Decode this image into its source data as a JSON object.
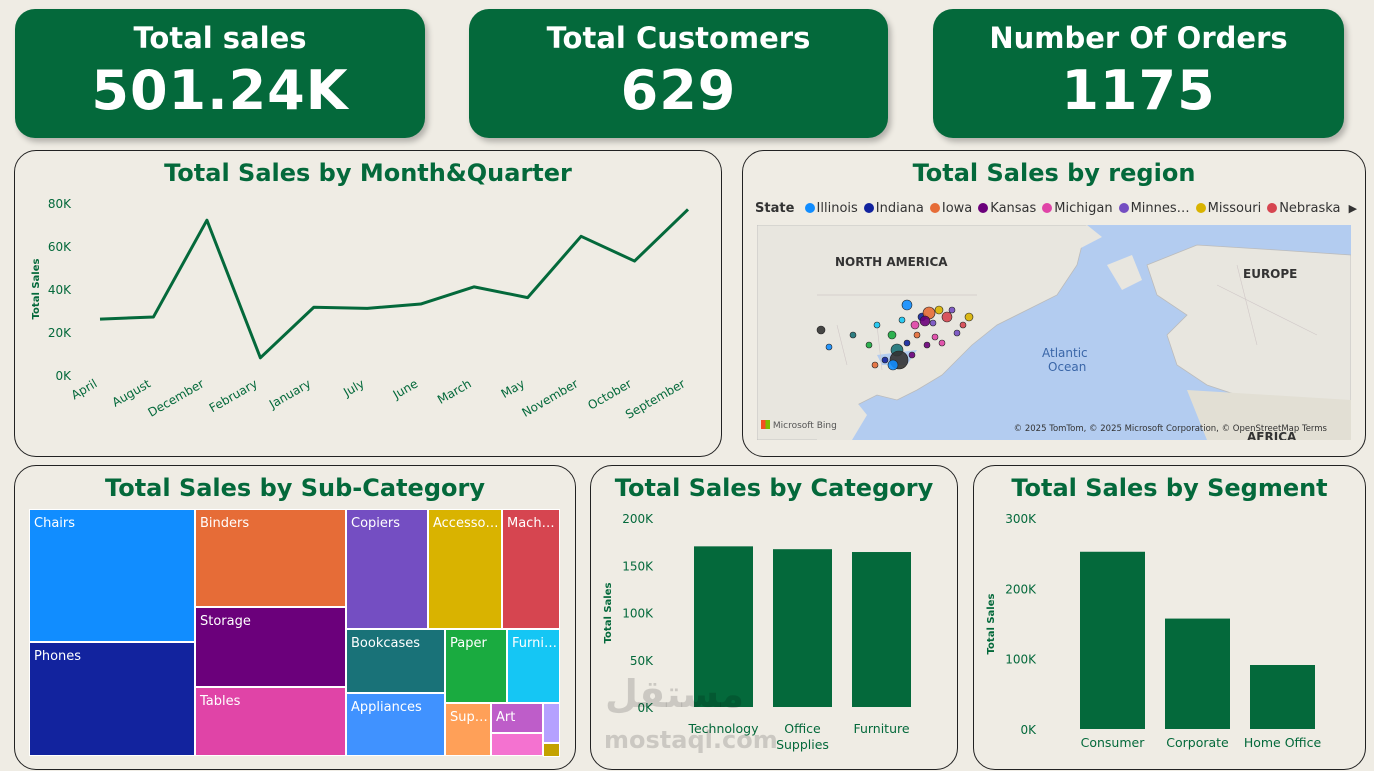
{
  "kpis": [
    {
      "title": "Total sales",
      "value": "501.24K"
    },
    {
      "title": "Total Customers",
      "value": "629"
    },
    {
      "title": "Number Of Orders",
      "value": "1175"
    }
  ],
  "titles": {
    "month": "Total Sales by Month&Quarter",
    "region": "Total Sales by region",
    "subcat": "Total Sales by Sub-Category",
    "category": "Total Sales by Category",
    "segment": "Total Sales by Segment"
  },
  "map": {
    "legend_title": "State",
    "legend_items": [
      {
        "name": "Illinois",
        "color": "#118dff"
      },
      {
        "name": "Indiana",
        "color": "#12239e"
      },
      {
        "name": "Iowa",
        "color": "#e66c37"
      },
      {
        "name": "Kansas",
        "color": "#6b007b"
      },
      {
        "name": "Michigan",
        "color": "#e044a7"
      },
      {
        "name": "Minnes…",
        "color": "#744ec2"
      },
      {
        "name": "Missouri",
        "color": "#d9b300"
      },
      {
        "name": "Nebraska",
        "color": "#d64550"
      }
    ],
    "labels": {
      "na": "NORTH AMERICA",
      "eu": "EUROPE",
      "ocean1": "Atlantic",
      "ocean2": "Ocean",
      "af": "AFRICA"
    },
    "attribution": "© 2025 TomTom, © 2025 Microsoft Corporation, © OpenStreetMap  Terms",
    "brand": "Microsoft Bing"
  },
  "watermark": {
    "line1": "مستقل",
    "line2": "mostaql.com"
  },
  "chart_data": [
    {
      "type": "line",
      "title": "Total Sales by Month&Quarter",
      "ylabel": "Total Sales",
      "xlabel": "",
      "categories": [
        "April",
        "August",
        "December",
        "February",
        "January",
        "July",
        "June",
        "March",
        "May",
        "November",
        "October",
        "September"
      ],
      "values": [
        26000,
        27000,
        72000,
        8000,
        31500,
        31000,
        33000,
        41000,
        36000,
        64500,
        53000,
        77000
      ],
      "ylim": [
        0,
        80000
      ],
      "yticks": [
        "0K",
        "20K",
        "40K",
        "60K",
        "80K"
      ],
      "color": "#04693b"
    },
    {
      "type": "treemap",
      "title": "Total Sales by Sub-Category",
      "items": [
        {
          "name": "Chairs",
          "color": "#118dff"
        },
        {
          "name": "Phones",
          "color": "#12239e"
        },
        {
          "name": "Binders",
          "color": "#e66c37"
        },
        {
          "name": "Storage",
          "color": "#6b007b"
        },
        {
          "name": "Tables",
          "color": "#e044a7"
        },
        {
          "name": "Copiers",
          "color": "#744ec2"
        },
        {
          "name": "Accesso…",
          "color": "#d9b300"
        },
        {
          "name": "Mach…",
          "color": "#d64550"
        },
        {
          "name": "Bookcases",
          "color": "#197278"
        },
        {
          "name": "Paper",
          "color": "#1aab40"
        },
        {
          "name": "Furni…",
          "color": "#15c6f4"
        },
        {
          "name": "Appliances",
          "color": "#4092ff"
        },
        {
          "name": "Sup…",
          "color": "#ffa058"
        },
        {
          "name": "Art",
          "color": "#be5dc9"
        },
        {
          "name": "",
          "color": "#f472d0"
        },
        {
          "name": "",
          "color": "#b5a1ff"
        },
        {
          "name": "",
          "color": "#c4a200"
        }
      ]
    },
    {
      "type": "bar",
      "title": "Total Sales by Category",
      "ylabel": "Total Sales",
      "categories": [
        "Technology",
        "Office Supplies",
        "Furniture"
      ],
      "values": [
        170000,
        167000,
        164000
      ],
      "ylim": [
        0,
        200000
      ],
      "yticks": [
        "0K",
        "50K",
        "100K",
        "150K",
        "200K"
      ],
      "color": "#04693b"
    },
    {
      "type": "bar",
      "title": "Total Sales by Segment",
      "ylabel": "Total Sales",
      "categories": [
        "Consumer",
        "Corporate",
        "Home Office"
      ],
      "values": [
        252000,
        157000,
        91000
      ],
      "ylim": [
        0,
        300000
      ],
      "yticks": [
        "0K",
        "100K",
        "200K",
        "300K"
      ],
      "color": "#04693b"
    }
  ]
}
